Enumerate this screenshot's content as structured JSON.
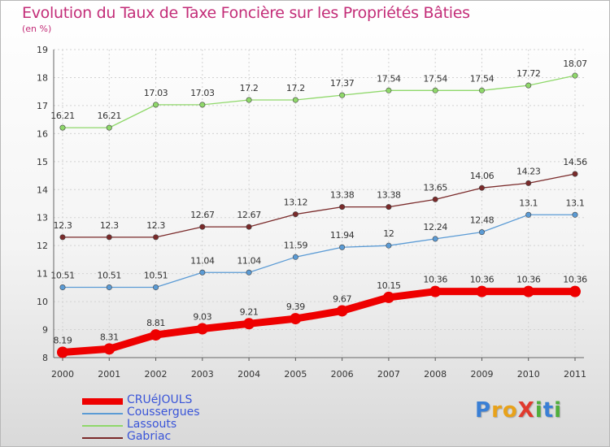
{
  "title": "Evolution du Taux de Taxe Foncière sur les Propriétés Bâties",
  "unit_label": "(en %)",
  "logo": {
    "text": "ProXiti",
    "letters": [
      {
        "ch": "P",
        "color": "#3a7fd5"
      },
      {
        "ch": "r",
        "color": "#e8a21a"
      },
      {
        "ch": "o",
        "color": "#e8a21a"
      },
      {
        "ch": "X",
        "color": "#e03a2e"
      },
      {
        "ch": "i",
        "color": "#4fae3b"
      },
      {
        "ch": "t",
        "color": "#3a7fd5"
      },
      {
        "ch": "i",
        "color": "#4fae3b"
      }
    ]
  },
  "chart_data": {
    "type": "line",
    "x": [
      "2000",
      "2001",
      "2002",
      "2003",
      "2004",
      "2005",
      "2006",
      "2007",
      "2008",
      "2009",
      "2010",
      "2011"
    ],
    "ylim": [
      8,
      19
    ],
    "yticks": [
      8,
      9,
      10,
      11,
      12,
      13,
      14,
      15,
      16,
      17,
      18,
      19
    ],
    "grid": true,
    "legend_position": "bottom-left",
    "series": [
      {
        "name": "CRUéJOULS",
        "color": "#ee0000",
        "bold": true,
        "values": [
          8.19,
          8.31,
          8.81,
          9.03,
          9.21,
          9.39,
          9.67,
          10.15,
          10.36,
          10.36,
          10.36,
          10.36
        ],
        "labels": [
          "8.19",
          "8.31",
          "8.81",
          "9.03",
          "9.21",
          "9.39",
          "9.67",
          "10.15",
          "10.36",
          "10.36",
          "10.36",
          "10.36"
        ]
      },
      {
        "name": "Coussergues",
        "color": "#5b9bd5",
        "values": [
          10.51,
          10.51,
          10.51,
          11.04,
          11.04,
          11.59,
          11.94,
          12,
          12.24,
          12.48,
          13.1,
          13.1
        ],
        "labels": [
          "10.51",
          "10.51",
          "10.51",
          "11.04",
          "11.04",
          "11.59",
          "11.94",
          "12",
          "12.24",
          "12.48",
          "13.1",
          "13.1"
        ]
      },
      {
        "name": "Lassouts",
        "color": "#8fd86a",
        "values": [
          16.21,
          16.21,
          17.03,
          17.03,
          17.2,
          17.2,
          17.37,
          17.54,
          17.54,
          17.54,
          17.72,
          18.07
        ],
        "labels": [
          "16.21",
          "16.21",
          "17.03",
          "17.03",
          "17.2",
          "17.2",
          "17.37",
          "17.54",
          "17.54",
          "17.54",
          "17.72",
          "18.07"
        ]
      },
      {
        "name": "Gabriac",
        "color": "#7a2a2a",
        "values": [
          12.3,
          12.3,
          12.3,
          12.67,
          12.67,
          13.12,
          13.38,
          13.38,
          13.65,
          14.06,
          14.23,
          14.56
        ],
        "labels": [
          "12.3",
          "12.3",
          "12.3",
          "12.67",
          "12.67",
          "13.12",
          "13.38",
          "13.38",
          "13.65",
          "14.06",
          "14.23",
          "14.56"
        ]
      }
    ]
  }
}
